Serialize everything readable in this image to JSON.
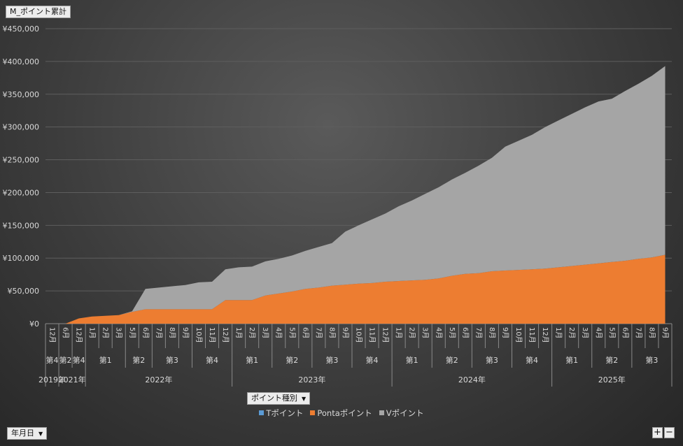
{
  "field_button": "M_ポイント累計",
  "legend_field_button": "ポイント種別",
  "axis_field_button": "年月日",
  "zoom_in": "+",
  "zoom_out": "−",
  "chart_data": {
    "type": "area",
    "stacked": true,
    "grid": true,
    "legend_position": "bottom",
    "ylim": [
      0,
      450000
    ],
    "y_ticks": [
      "¥0",
      "¥50,000",
      "¥100,000",
      "¥150,000",
      "¥200,000",
      "¥250,000",
      "¥300,000",
      "¥350,000",
      "¥400,000",
      "¥450,000"
    ],
    "y_tick_values": [
      0,
      50000,
      100000,
      150000,
      200000,
      250000,
      300000,
      350000,
      400000,
      450000
    ],
    "categories": [
      "12月",
      "6月",
      "12月",
      "1月",
      "2月",
      "3月",
      "5月",
      "6月",
      "7月",
      "8月",
      "9月",
      "10月",
      "11月",
      "12月",
      "1月",
      "2月",
      "3月",
      "4月",
      "5月",
      "6月",
      "7月",
      "8月",
      "9月",
      "10月",
      "11月",
      "12月",
      "1月",
      "2月",
      "3月",
      "4月",
      "5月",
      "6月",
      "7月",
      "8月",
      "9月",
      "10月",
      "11月",
      "12月",
      "1月",
      "2月",
      "3月",
      "4月",
      "5月",
      "6月",
      "7月",
      "8月",
      "9月"
    ],
    "quarters": [
      {
        "label": "第4",
        "from": 0,
        "to": 0
      },
      {
        "label": "第2",
        "from": 1,
        "to": 1
      },
      {
        "label": "第4",
        "from": 2,
        "to": 2
      },
      {
        "label": "第1",
        "from": 3,
        "to": 5
      },
      {
        "label": "第2",
        "from": 6,
        "to": 7
      },
      {
        "label": "第3",
        "from": 8,
        "to": 10
      },
      {
        "label": "第4",
        "from": 11,
        "to": 13
      },
      {
        "label": "第1",
        "from": 14,
        "to": 16
      },
      {
        "label": "第2",
        "from": 17,
        "to": 19
      },
      {
        "label": "第3",
        "from": 20,
        "to": 22
      },
      {
        "label": "第4",
        "from": 23,
        "to": 25
      },
      {
        "label": "第1",
        "from": 26,
        "to": 28
      },
      {
        "label": "第2",
        "from": 29,
        "to": 31
      },
      {
        "label": "第3",
        "from": 32,
        "to": 34
      },
      {
        "label": "第4",
        "from": 35,
        "to": 37
      },
      {
        "label": "第1",
        "from": 38,
        "to": 40
      },
      {
        "label": "第2",
        "from": 41,
        "to": 43
      },
      {
        "label": "第3",
        "from": 44,
        "to": 46
      }
    ],
    "years": [
      {
        "label": "2019年",
        "from": 0,
        "to": 0
      },
      {
        "label": "2021年",
        "from": 1,
        "to": 2
      },
      {
        "label": "2022年",
        "from": 3,
        "to": 13
      },
      {
        "label": "2023年",
        "from": 14,
        "to": 25
      },
      {
        "label": "2024年",
        "from": 26,
        "to": 37
      },
      {
        "label": "2025年",
        "from": 38,
        "to": 46
      }
    ],
    "series": [
      {
        "name": "Tポイント",
        "color": "#5b9bd5",
        "values": [
          0,
          0,
          0,
          0,
          0,
          0,
          0,
          0,
          0,
          0,
          0,
          0,
          0,
          0,
          0,
          0,
          0,
          0,
          0,
          0,
          0,
          0,
          0,
          0,
          0,
          0,
          0,
          0,
          0,
          0,
          0,
          0,
          0,
          0,
          0,
          0,
          0,
          0,
          0,
          0,
          0,
          0,
          0,
          0,
          0,
          0,
          0
        ]
      },
      {
        "name": "Pontaポイント",
        "color": "#ed7d31",
        "values": [
          0,
          0,
          8000,
          11000,
          12000,
          13000,
          18000,
          22000,
          22000,
          22000,
          22000,
          22000,
          22000,
          36000,
          36000,
          36000,
          43000,
          46000,
          49000,
          53000,
          55000,
          58000,
          59500,
          61000,
          62000,
          64000,
          65000,
          66000,
          67000,
          69000,
          73000,
          76000,
          77000,
          80000,
          81000,
          82000,
          83000,
          84000,
          86000,
          88000,
          90000,
          92000,
          94000,
          96000,
          99000,
          101000,
          105000
        ]
      },
      {
        "name": "Vポイント",
        "color": "#a5a5a5",
        "values": [
          0,
          0,
          0,
          0,
          0,
          0,
          1000,
          31000,
          33000,
          35000,
          37000,
          41000,
          42000,
          47000,
          50000,
          51000,
          52000,
          53000,
          55000,
          58000,
          62000,
          65000,
          81000,
          89000,
          97000,
          104000,
          114000,
          122000,
          131000,
          139000,
          147000,
          154000,
          164000,
          173000,
          189000,
          197000,
          205000,
          216000,
          224000,
          232000,
          240000,
          247000,
          249000,
          259000,
          267000,
          277000,
          288000
        ]
      }
    ]
  }
}
